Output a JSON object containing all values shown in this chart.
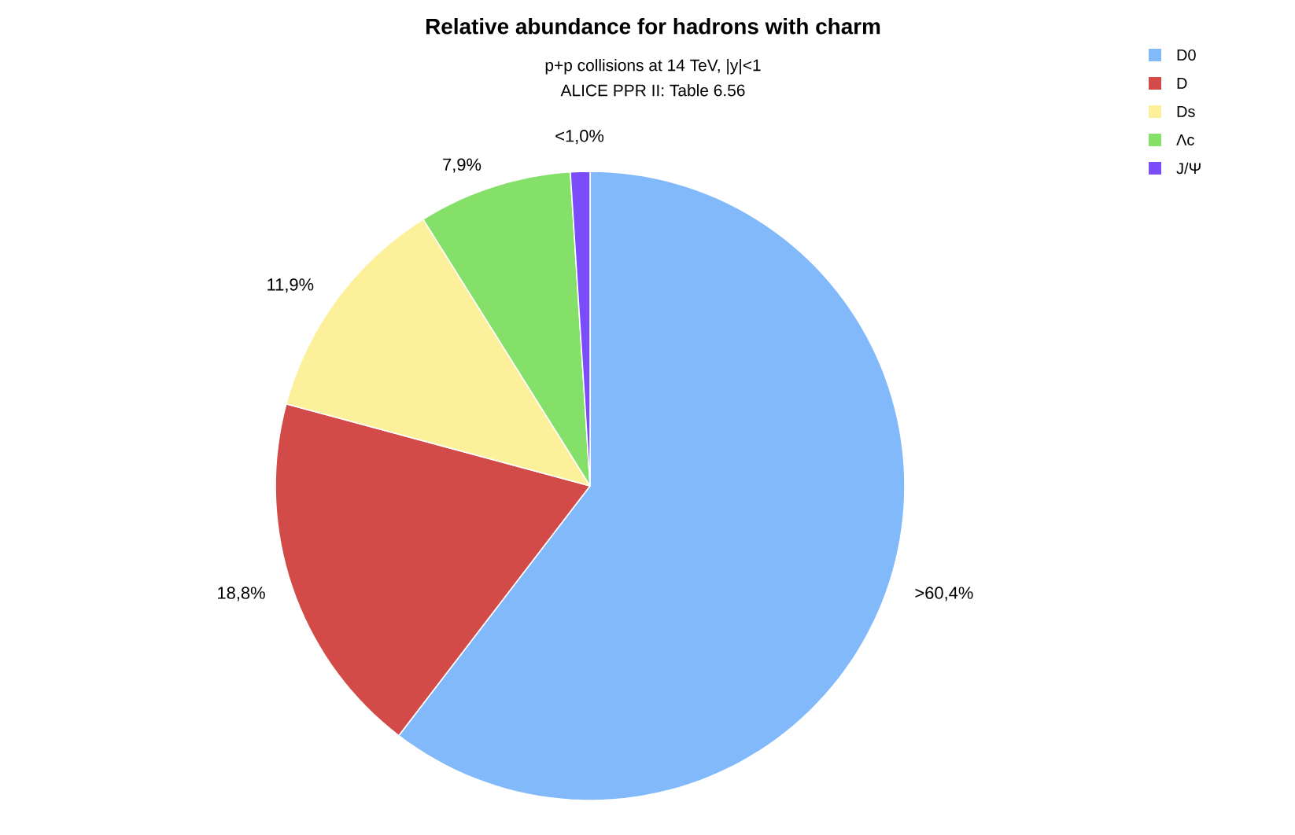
{
  "chart_data": {
    "type": "pie",
    "title": "Relative abundance for hadrons with charm",
    "subtitle": "p+p collisions at 14 TeV, |y|<1",
    "annotations": [
      "ALICE PPR II: Table 6.56"
    ],
    "categories": [
      "D0",
      "D",
      "Ds",
      "Λc",
      "J/Ψ"
    ],
    "values": [
      60.4,
      18.8,
      11.9,
      7.9,
      1.0
    ],
    "value_labels": [
      ">60,4%",
      "18,8%",
      "11,9%",
      "7,9%",
      "<1,0%"
    ],
    "colors": [
      "#82b9fa",
      "#d34b48",
      "#fdf09a",
      "#85e06a",
      "#7b4dfa"
    ],
    "legend": "top right"
  }
}
